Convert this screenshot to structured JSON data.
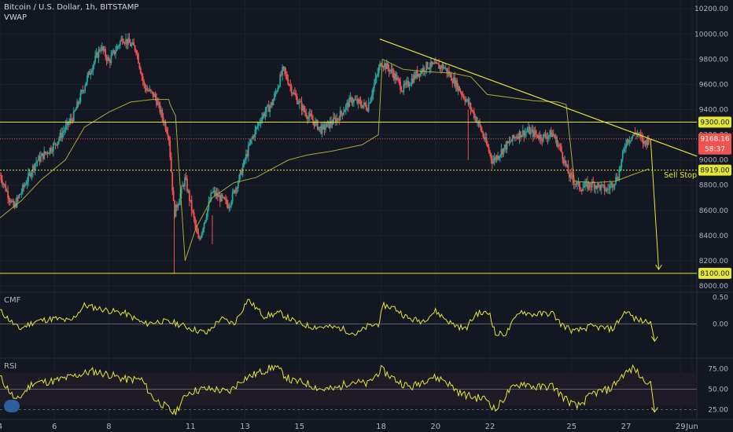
{
  "header": {
    "title": "Bitcoin / U.S. Dollar, 1h, BITSTAMP",
    "indicator": "VWAP"
  },
  "colors": {
    "background": "#131722",
    "up": "#26a69a",
    "down": "#ef5350",
    "annotation": "#e6e63a",
    "grid": "#1e222d",
    "axis_text": "#b2b5be"
  },
  "chart_data": [
    {
      "type": "candlestick",
      "title": "Bitcoin / U.S. Dollar, 1h, BITSTAMP",
      "x_ticks": [
        "4",
        "6",
        "8",
        "11",
        "13",
        "15",
        "18",
        "20",
        "22",
        "25",
        "27",
        "29",
        "Jun"
      ],
      "y_ticks": [
        8000,
        8200,
        8400,
        8600,
        8800,
        9000,
        9200,
        9400,
        9600,
        9800,
        10000,
        10200
      ],
      "ylim": [
        7950,
        10270
      ],
      "price_path": [
        [
          4,
          8880
        ],
        [
          4.5,
          8620
        ],
        [
          5.3,
          8980
        ],
        [
          6,
          9120
        ],
        [
          6.7,
          9350
        ],
        [
          7.2,
          9650
        ],
        [
          7.7,
          9900
        ],
        [
          8,
          9780
        ],
        [
          8.5,
          9970
        ],
        [
          9,
          9880
        ],
        [
          9.3,
          9580
        ],
        [
          9.7,
          9500
        ],
        [
          10.2,
          9200
        ],
        [
          10.4,
          8570
        ],
        [
          10.8,
          8850
        ],
        [
          11.3,
          8350
        ],
        [
          11.8,
          8750
        ],
        [
          12.4,
          8640
        ],
        [
          12.8,
          8860
        ],
        [
          13.2,
          9140
        ],
        [
          13.6,
          9340
        ],
        [
          14,
          9450
        ],
        [
          14.4,
          9720
        ],
        [
          14.8,
          9520
        ],
        [
          15.2,
          9380
        ],
        [
          15.8,
          9240
        ],
        [
          16.4,
          9330
        ],
        [
          16.9,
          9480
        ],
        [
          17.5,
          9420
        ],
        [
          18,
          9780
        ],
        [
          18.4,
          9700
        ],
        [
          18.8,
          9560
        ],
        [
          19.3,
          9680
        ],
        [
          19.7,
          9750
        ],
        [
          20.3,
          9740
        ],
        [
          20.7,
          9620
        ],
        [
          21.2,
          9450
        ],
        [
          21.6,
          9280
        ],
        [
          22.1,
          8990
        ],
        [
          22.5,
          9090
        ],
        [
          23,
          9200
        ],
        [
          23.4,
          9230
        ],
        [
          23.9,
          9180
        ],
        [
          24.3,
          9210
        ],
        [
          24.6,
          9080
        ],
        [
          24.9,
          8880
        ],
        [
          25.3,
          8780
        ],
        [
          25.8,
          8810
        ],
        [
          26.3,
          8760
        ],
        [
          26.7,
          8870
        ],
        [
          27,
          9150
        ],
        [
          27.4,
          9220
        ],
        [
          27.65,
          9130
        ],
        [
          27.85,
          9168
        ]
      ],
      "vwap": [
        [
          4,
          8540
        ],
        [
          4.8,
          8680
        ],
        [
          5.5,
          8840
        ],
        [
          6.4,
          9000
        ],
        [
          7.1,
          9260
        ],
        [
          8,
          9380
        ],
        [
          8.8,
          9460
        ],
        [
          9.6,
          9480
        ],
        [
          10.2,
          9480
        ],
        [
          10.25,
          9440
        ],
        [
          10.45,
          9350
        ],
        [
          10.8,
          8200
        ],
        [
          11.2,
          8460
        ],
        [
          11.8,
          8700
        ],
        [
          12.6,
          8820
        ],
        [
          13.4,
          8860
        ],
        [
          14,
          8930
        ],
        [
          14.6,
          9000
        ],
        [
          15.3,
          9040
        ],
        [
          16.2,
          9070
        ],
        [
          17.3,
          9120
        ],
        [
          17.9,
          9200
        ],
        [
          18.05,
          9800
        ],
        [
          18.8,
          9720
        ],
        [
          19.7,
          9700
        ],
        [
          20.6,
          9690
        ],
        [
          21.3,
          9660
        ],
        [
          21.9,
          9520
        ],
        [
          22.6,
          9500
        ],
        [
          23.6,
          9470
        ],
        [
          24.5,
          9460
        ],
        [
          24.8,
          9440
        ],
        [
          25.1,
          8830
        ],
        [
          25.8,
          8820
        ],
        [
          26.6,
          8830
        ],
        [
          27.2,
          8880
        ],
        [
          27.6,
          8910
        ],
        [
          27.85,
          8930
        ]
      ],
      "hlines": [
        {
          "price": 9300,
          "label": "9300.00"
        },
        {
          "price": 8919,
          "label": "8919.00",
          "dotted": true
        },
        {
          "price": 8100,
          "label": "8100.00"
        }
      ],
      "last_price": {
        "price": 9168,
        "label": "9168.16",
        "sub_label": "58:37",
        "dotted": true
      },
      "trendline": {
        "from": [
          17.95,
          9960
        ],
        "to": [
          29.6,
          9030
        ]
      },
      "projection_arrow": {
        "from": [
          27.9,
          9168
        ],
        "to": [
          28.2,
          8130
        ]
      },
      "annotations": [
        {
          "text": "Sell Stop",
          "x": 29.6,
          "y": 8880
        }
      ]
    },
    {
      "type": "line",
      "title": "CMF",
      "y_ticks": [
        0.5,
        0.0
      ],
      "ylim": [
        -0.65,
        0.6
      ],
      "zero_line": 0.0,
      "path": [
        [
          4,
          0.25
        ],
        [
          4.7,
          -0.1
        ],
        [
          5.3,
          0.05
        ],
        [
          6,
          0.1
        ],
        [
          6.6,
          0.05
        ],
        [
          7.1,
          0.35
        ],
        [
          8,
          0.25
        ],
        [
          8.6,
          0.2
        ],
        [
          9.3,
          0.0
        ],
        [
          9.9,
          0.05
        ],
        [
          10.4,
          0.02
        ],
        [
          11.1,
          -0.1
        ],
        [
          11.6,
          -0.18
        ],
        [
          12.1,
          0.1
        ],
        [
          12.6,
          0.0
        ],
        [
          13.1,
          0.46
        ],
        [
          13.7,
          0.15
        ],
        [
          14.3,
          0.2
        ],
        [
          14.9,
          0.02
        ],
        [
          15.4,
          -0.05
        ],
        [
          16,
          -0.06
        ],
        [
          16.5,
          -0.08
        ],
        [
          17.1,
          -0.2
        ],
        [
          17.5,
          -0.05
        ],
        [
          17.9,
          0.0
        ],
        [
          18.1,
          0.35
        ],
        [
          18.5,
          0.3
        ],
        [
          19,
          0.1
        ],
        [
          19.5,
          0.05
        ],
        [
          20,
          0.24
        ],
        [
          20.6,
          0.0
        ],
        [
          21.1,
          -0.1
        ],
        [
          21.5,
          0.2
        ],
        [
          22,
          0.2
        ],
        [
          22.2,
          -0.2
        ],
        [
          22.6,
          -0.18
        ],
        [
          23.1,
          0.25
        ],
        [
          23.5,
          0.18
        ],
        [
          24.3,
          0.2
        ],
        [
          24.6,
          0.0
        ],
        [
          25.1,
          -0.15
        ],
        [
          25.7,
          -0.05
        ],
        [
          26.5,
          -0.1
        ],
        [
          27,
          0.25
        ],
        [
          27.3,
          0.1
        ],
        [
          27.6,
          0.05
        ],
        [
          27.9,
          0.05
        ]
      ],
      "projection_arrow": {
        "from": [
          27.9,
          0.05
        ],
        "to": [
          28.05,
          -0.33
        ]
      }
    },
    {
      "type": "line",
      "title": "RSI",
      "y_ticks": [
        75.0,
        50.0,
        25.0
      ],
      "ylim": [
        13,
        88
      ],
      "band": [
        30,
        70
      ],
      "hlines": [
        50,
        25
      ],
      "path": [
        [
          4,
          65
        ],
        [
          4.6,
          35
        ],
        [
          5.2,
          58
        ],
        [
          6,
          60
        ],
        [
          6.7,
          66
        ],
        [
          7.4,
          72
        ],
        [
          8,
          68
        ],
        [
          8.6,
          62
        ],
        [
          9.2,
          62
        ],
        [
          9.6,
          40
        ],
        [
          10.2,
          26
        ],
        [
          10.4,
          20
        ],
        [
          10.9,
          46
        ],
        [
          11.4,
          50
        ],
        [
          11.9,
          50
        ],
        [
          12.4,
          46
        ],
        [
          12.9,
          62
        ],
        [
          13.5,
          70
        ],
        [
          14.1,
          78
        ],
        [
          14.7,
          60
        ],
        [
          15.2,
          58
        ],
        [
          15.8,
          50
        ],
        [
          16.3,
          50
        ],
        [
          16.9,
          60
        ],
        [
          17.5,
          56
        ],
        [
          18,
          74
        ],
        [
          18.6,
          60
        ],
        [
          19.1,
          52
        ],
        [
          19.8,
          65
        ],
        [
          20.3,
          62
        ],
        [
          20.9,
          45
        ],
        [
          21.4,
          40
        ],
        [
          21.9,
          38
        ],
        [
          22.2,
          24
        ],
        [
          22.7,
          48
        ],
        [
          23.2,
          58
        ],
        [
          23.7,
          52
        ],
        [
          24.3,
          54
        ],
        [
          24.7,
          40
        ],
        [
          25.2,
          28
        ],
        [
          25.8,
          45
        ],
        [
          26.4,
          50
        ],
        [
          26.9,
          68
        ],
        [
          27.3,
          76
        ],
        [
          27.6,
          62
        ],
        [
          27.9,
          60
        ]
      ],
      "projection_arrow": {
        "from": [
          27.9,
          60
        ],
        "to": [
          28.05,
          22
        ]
      }
    }
  ]
}
